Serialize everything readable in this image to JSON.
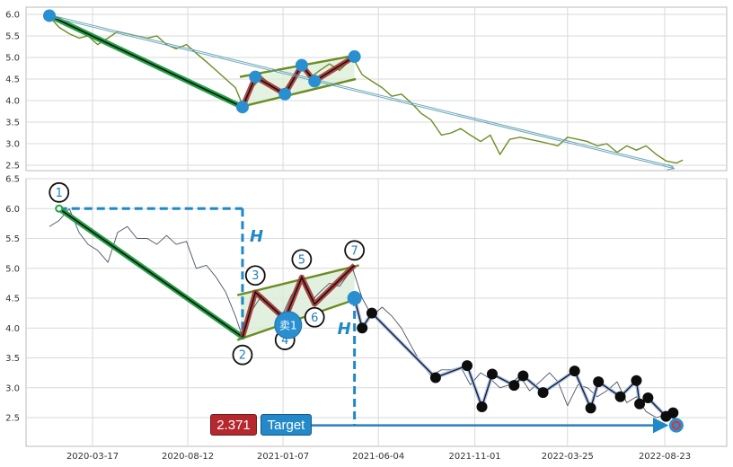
{
  "chart_data": [
    {
      "type": "line",
      "panel": "overview",
      "ylim": [
        2.4,
        6.1
      ],
      "yticks": [
        "2.5",
        "3.0",
        "3.5",
        "4.0",
        "4.5",
        "5.0",
        "5.5",
        "6.0"
      ],
      "grid": true,
      "series": [
        {
          "color": "#6b8e23",
          "values": [
            [
              "2020-01-10",
              5.95
            ],
            [
              "2020-01-25",
              5.7
            ],
            [
              "2020-02-10",
              5.55
            ],
            [
              "2020-02-25",
              5.45
            ],
            [
              "2020-03-10",
              5.5
            ],
            [
              "2020-03-25",
              5.3
            ],
            [
              "2020-04-10",
              5.45
            ],
            [
              "2020-04-25",
              5.6
            ],
            [
              "2020-05-10",
              5.55
            ],
            [
              "2020-05-25",
              5.5
            ],
            [
              "2020-06-10",
              5.45
            ],
            [
              "2020-06-25",
              5.5
            ],
            [
              "2020-07-10",
              5.3
            ],
            [
              "2020-07-25",
              5.2
            ],
            [
              "2020-08-10",
              5.3
            ],
            [
              "2020-08-25",
              5.1
            ],
            [
              "2020-09-10",
              4.9
            ],
            [
              "2020-09-25",
              4.7
            ],
            [
              "2020-10-10",
              4.5
            ],
            [
              "2020-10-25",
              4.3
            ],
            [
              "2020-11-05",
              3.9
            ],
            [
              "2020-11-20",
              4.3
            ],
            [
              "2020-12-05",
              4.55
            ],
            [
              "2020-12-20",
              4.35
            ],
            [
              "2021-01-05",
              4.15
            ],
            [
              "2021-01-20",
              4.5
            ],
            [
              "2021-02-05",
              4.85
            ],
            [
              "2021-02-20",
              4.55
            ],
            [
              "2021-03-05",
              4.7
            ],
            [
              "2021-03-20",
              4.85
            ],
            [
              "2021-04-05",
              4.7
            ],
            [
              "2021-04-25",
              5.0
            ],
            [
              "2021-05-10",
              4.6
            ],
            [
              "2021-05-25",
              4.45
            ],
            [
              "2021-06-10",
              4.3
            ],
            [
              "2021-06-25",
              4.1
            ],
            [
              "2021-07-10",
              4.15
            ],
            [
              "2021-07-25",
              3.95
            ],
            [
              "2021-08-10",
              3.7
            ],
            [
              "2021-08-25",
              3.55
            ],
            [
              "2021-09-10",
              3.2
            ],
            [
              "2021-09-25",
              3.25
            ],
            [
              "2021-10-10",
              3.35
            ],
            [
              "2021-10-25",
              3.2
            ],
            [
              "2021-11-10",
              3.05
            ],
            [
              "2021-11-25",
              3.2
            ],
            [
              "2021-12-10",
              2.75
            ],
            [
              "2021-12-25",
              3.1
            ],
            [
              "2022-01-10",
              3.15
            ],
            [
              "2022-01-25",
              3.1
            ],
            [
              "2022-02-10",
              3.05
            ],
            [
              "2022-02-25",
              3.0
            ],
            [
              "2022-03-10",
              2.95
            ],
            [
              "2022-03-25",
              3.15
            ],
            [
              "2022-04-10",
              3.1
            ],
            [
              "2022-04-25",
              3.05
            ],
            [
              "2022-05-10",
              2.95
            ],
            [
              "2022-05-25",
              3.0
            ],
            [
              "2022-06-10",
              2.8
            ],
            [
              "2022-06-25",
              2.95
            ],
            [
              "2022-07-10",
              2.85
            ],
            [
              "2022-07-25",
              2.95
            ],
            [
              "2022-08-10",
              2.75
            ],
            [
              "2022-08-25",
              2.6
            ],
            [
              "2022-09-10",
              2.55
            ],
            [
              "2022-09-20",
              2.62
            ]
          ]
        }
      ],
      "pattern_points": [
        [
          "2020-11-05",
          3.85
        ],
        [
          "2020-11-25",
          4.55
        ],
        [
          "2021-01-10",
          4.15
        ],
        [
          "2021-02-05",
          4.82
        ],
        [
          "2021-02-25",
          4.45
        ],
        [
          "2021-04-28",
          5.02
        ]
      ],
      "start_point": [
        "2020-01-10",
        5.97
      ],
      "target_arrow": {
        "from": [
          "2020-01-10",
          5.97
        ],
        "to": [
          "2022-09-05",
          2.45
        ]
      }
    },
    {
      "type": "line",
      "panel": "detail",
      "ylim": [
        2.0,
        6.5
      ],
      "yticks": [
        "2.5",
        "3.0",
        "3.5",
        "4.0",
        "4.5",
        "5.0",
        "5.5",
        "6.0",
        "6.5"
      ],
      "xticks": [
        "2020-03-17",
        "2020-08-12",
        "2021-01-07",
        "2021-06-04",
        "2021-11-01",
        "2022-03-25",
        "2022-08-23"
      ],
      "grid": true,
      "series": [
        {
          "color": "#4a5366",
          "values": [
            [
              "2020-01-10",
              5.7
            ],
            [
              "2020-01-25",
              5.8
            ],
            [
              "2020-02-10",
              6.0
            ],
            [
              "2020-02-25",
              5.6
            ],
            [
              "2020-03-10",
              5.4
            ],
            [
              "2020-03-25",
              5.3
            ],
            [
              "2020-04-10",
              5.1
            ],
            [
              "2020-04-25",
              5.6
            ],
            [
              "2020-05-10",
              5.7
            ],
            [
              "2020-05-25",
              5.5
            ],
            [
              "2020-06-10",
              5.5
            ],
            [
              "2020-06-25",
              5.4
            ],
            [
              "2020-07-10",
              5.55
            ],
            [
              "2020-07-25",
              5.4
            ],
            [
              "2020-08-10",
              5.45
            ],
            [
              "2020-08-25",
              5.0
            ],
            [
              "2020-09-10",
              5.05
            ],
            [
              "2020-09-25",
              4.85
            ],
            [
              "2020-10-10",
              4.6
            ],
            [
              "2020-10-25",
              4.2
            ],
            [
              "2020-11-05",
              3.85
            ],
            [
              "2020-11-20",
              4.3
            ],
            [
              "2020-12-05",
              4.55
            ],
            [
              "2020-12-20",
              4.4
            ],
            [
              "2021-01-05",
              4.2
            ],
            [
              "2021-01-20",
              4.55
            ],
            [
              "2021-02-05",
              4.8
            ],
            [
              "2021-02-20",
              4.45
            ],
            [
              "2021-03-05",
              4.6
            ],
            [
              "2021-03-20",
              4.75
            ],
            [
              "2021-04-05",
              4.7
            ],
            [
              "2021-04-25",
              5.0
            ],
            [
              "2021-05-10",
              4.5
            ],
            [
              "2021-05-25",
              4.2
            ],
            [
              "2021-06-10",
              4.35
            ],
            [
              "2021-06-25",
              4.2
            ],
            [
              "2021-07-10",
              4.0
            ],
            [
              "2021-07-25",
              3.7
            ],
            [
              "2021-08-10",
              3.4
            ],
            [
              "2021-08-25",
              3.2
            ],
            [
              "2021-09-10",
              3.3
            ],
            [
              "2021-09-25",
              3.3
            ],
            [
              "2021-10-10",
              3.35
            ],
            [
              "2021-10-25",
              3.05
            ],
            [
              "2021-11-10",
              3.25
            ],
            [
              "2021-11-25",
              3.15
            ],
            [
              "2021-12-10",
              3.0
            ],
            [
              "2021-12-25",
              3.05
            ],
            [
              "2022-01-10",
              3.2
            ],
            [
              "2022-01-25",
              2.95
            ],
            [
              "2022-02-10",
              3.1
            ],
            [
              "2022-02-25",
              3.25
            ],
            [
              "2022-03-10",
              3.1
            ],
            [
              "2022-03-25",
              2.7
            ],
            [
              "2022-04-10",
              3.05
            ],
            [
              "2022-04-25",
              3.0
            ],
            [
              "2022-05-10",
              2.85
            ],
            [
              "2022-05-25",
              2.95
            ],
            [
              "2022-06-10",
              3.1
            ],
            [
              "2022-06-25",
              2.75
            ],
            [
              "2022-07-10",
              2.85
            ],
            [
              "2022-07-25",
              2.6
            ],
            [
              "2022-08-10",
              2.5
            ],
            [
              "2022-08-25",
              2.55
            ],
            [
              "2022-09-10",
              2.45
            ]
          ]
        }
      ],
      "pattern_points": [
        [
          "2020-11-05",
          3.85
        ],
        [
          "2020-11-25",
          4.6
        ],
        [
          "2021-01-10",
          4.15
        ],
        [
          "2021-02-05",
          4.85
        ],
        [
          "2021-02-25",
          4.4
        ],
        [
          "2021-04-28",
          5.05
        ]
      ],
      "wave_labels": [
        {
          "text": "1",
          "at": [
            "2020-01-25",
            6.27
          ]
        },
        {
          "text": "2",
          "at": [
            "2020-11-05",
            3.55
          ]
        },
        {
          "text": "3",
          "at": [
            "2020-11-25",
            4.88
          ]
        },
        {
          "text": "4",
          "at": [
            "2021-01-10",
            3.8
          ]
        },
        {
          "text": "5",
          "at": [
            "2021-02-05",
            5.15
          ]
        },
        {
          "text": "6",
          "at": [
            "2021-02-25",
            4.18
          ]
        },
        {
          "text": "7",
          "at": [
            "2021-04-28",
            5.3
          ]
        }
      ],
      "down_points": [
        [
          "2021-05-10",
          4.0
        ],
        [
          "2021-05-25",
          4.25
        ],
        [
          "2021-09-01",
          3.17
        ],
        [
          "2021-10-20",
          3.37
        ],
        [
          "2021-11-12",
          2.68
        ],
        [
          "2021-11-28",
          3.23
        ],
        [
          "2022-01-01",
          3.04
        ],
        [
          "2022-01-15",
          3.2
        ],
        [
          "2022-02-15",
          2.92
        ],
        [
          "2022-04-05",
          3.28
        ],
        [
          "2022-04-30",
          2.66
        ],
        [
          "2022-05-12",
          3.1
        ],
        [
          "2022-06-15",
          2.85
        ],
        [
          "2022-07-10",
          3.12
        ],
        [
          "2022-07-15",
          2.73
        ],
        [
          "2022-07-28",
          2.83
        ],
        [
          "2022-08-25",
          2.52
        ],
        [
          "2022-09-05",
          2.58
        ]
      ],
      "sell_marker": {
        "label": "卖1",
        "at": [
          "2021-01-15",
          4.05
        ]
      },
      "sell_point": [
        "2021-04-28",
        4.5
      ],
      "target_point": [
        "2022-09-10",
        2.37
      ],
      "height_annotation": {
        "label": "H",
        "top": 6.0,
        "bottom": 3.85,
        "x_date": "2020-11-05",
        "start_date": "2020-01-25"
      },
      "projection_annotation": {
        "label": "H",
        "x_date": "2021-04-28",
        "top": 4.5,
        "bottom": 2.37,
        "arrow_start": "2021-02-01"
      },
      "target_price": "2.371",
      "target_label": "Target"
    }
  ]
}
